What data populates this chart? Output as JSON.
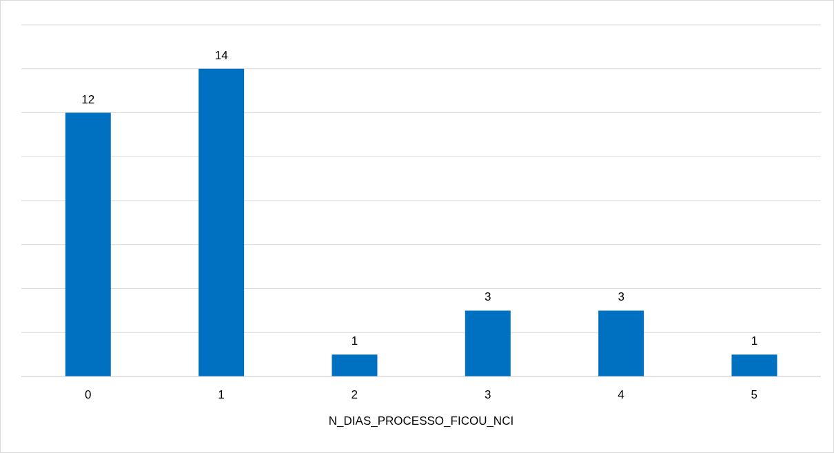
{
  "chart_data": {
    "type": "bar",
    "xlabel": "N_DIAS_PROCESSO_FICOU_NCI",
    "categories": [
      "0",
      "1",
      "2",
      "3",
      "4",
      "5"
    ],
    "values": [
      12,
      14,
      1,
      3,
      3,
      1
    ],
    "color": "#0070c0",
    "ylim": [
      0,
      16
    ],
    "yticks": [
      {
        "value": 0,
        "label": null
      },
      {
        "value": 2,
        "label": null
      },
      {
        "value": 4,
        "label": null
      },
      {
        "value": 6,
        "label": null
      },
      {
        "value": 8,
        "label": null
      },
      {
        "value": 10,
        "label": null
      },
      {
        "value": 12,
        "label": null
      },
      {
        "value": 14,
        "label": null
      },
      {
        "value": 16,
        "label": null
      }
    ],
    "grid": "y",
    "tick_labels": "x",
    "data_labels": true
  }
}
